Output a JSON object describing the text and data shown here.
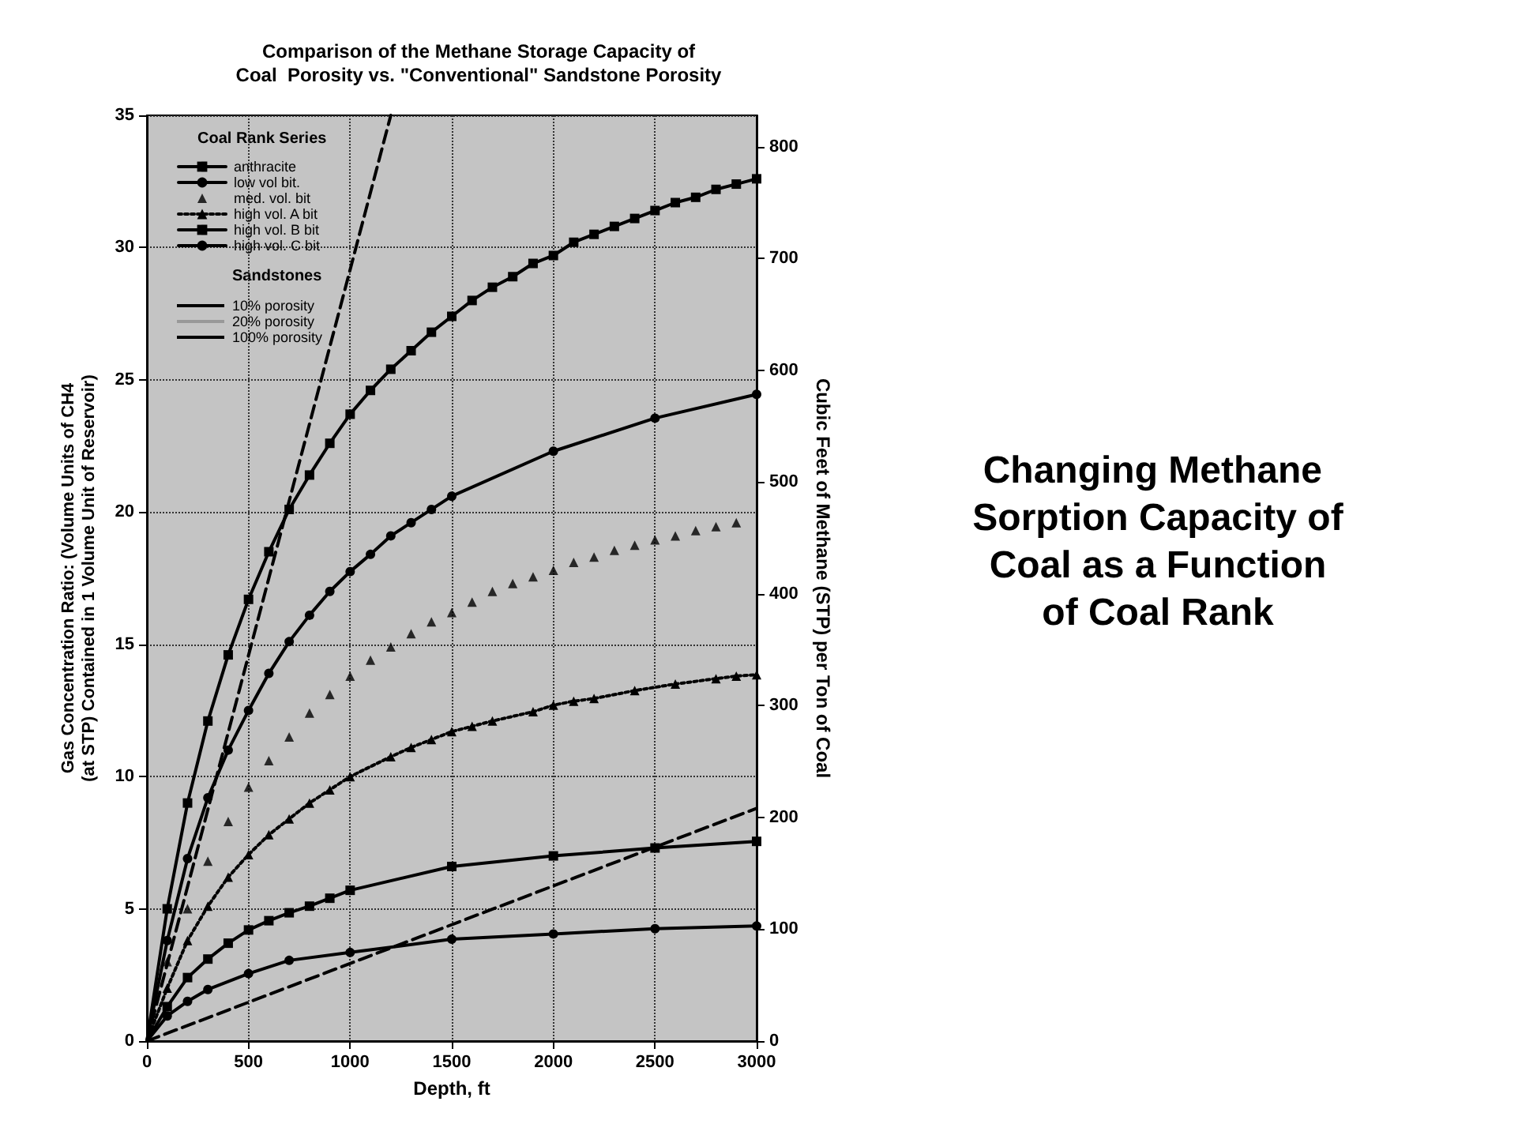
{
  "chart_data": {
    "type": "line",
    "title": "Changing Methane Sorption Capacity of Coal as a Function of Coal Rank",
    "subtitle": "Comparison of the Methane Storage Capacity of\nCoal  Porosity vs. \"Conventional\" Sandstone Porosity",
    "xlabel": "Depth, ft",
    "ylabel": "Gas Concentration Ratio: (Volume Units of CH4\n(at STP) Contained in 1 Volume Unit of Reservoir)",
    "y2label": "Cubic Feet of Methane (STP) per Ton of Coal",
    "legend_title": "Coal Rank Series",
    "annotations": [
      "Sandstones"
    ],
    "xlim": [
      0,
      3000
    ],
    "xticks": [
      0,
      500,
      1000,
      1500,
      2000,
      2500,
      3000
    ],
    "ylim": [
      0,
      35
    ],
    "yticks": [
      0,
      5,
      10,
      15,
      20,
      25,
      30,
      35
    ],
    "y2lim": [
      0,
      828
    ],
    "y2ticks": [
      0,
      100,
      200,
      300,
      400,
      500,
      600,
      700,
      800
    ],
    "grid": true,
    "legend": "top left",
    "series": [
      {
        "name": "anthracite",
        "color": "#000000",
        "marker": "square",
        "line_style": "solid",
        "x": [
          0,
          100,
          200,
          300,
          400,
          500,
          600,
          700,
          800,
          900,
          1000,
          1100,
          1200,
          1300,
          1400,
          1500,
          1600,
          1700,
          1800,
          1900,
          2000,
          2100,
          2200,
          2300,
          2400,
          2500,
          2600,
          2700,
          2800,
          2900,
          3000
        ],
        "values": [
          0,
          5.0,
          9.0,
          12.1,
          14.6,
          16.7,
          18.5,
          20.1,
          21.4,
          22.6,
          23.7,
          24.6,
          25.4,
          26.1,
          26.8,
          27.4,
          28.0,
          28.5,
          28.9,
          29.4,
          29.7,
          30.2,
          30.5,
          30.8,
          31.1,
          31.4,
          31.7,
          31.9,
          32.2,
          32.4,
          32.6
        ]
      },
      {
        "name": "low vol bit.",
        "color": "#000000",
        "marker": "circle",
        "line_style": "solid",
        "x": [
          0,
          100,
          200,
          300,
          400,
          500,
          600,
          700,
          800,
          900,
          1000,
          1100,
          1200,
          1300,
          1400,
          1500,
          2000,
          2500,
          3000
        ],
        "values": [
          0,
          3.8,
          6.9,
          9.2,
          11.0,
          12.5,
          13.9,
          15.1,
          16.1,
          17.0,
          17.75,
          18.4,
          19.1,
          19.6,
          20.1,
          20.6,
          22.3,
          23.55,
          24.45
        ]
      },
      {
        "name": "med. vol. bit",
        "type": "scatter",
        "color": "#000000",
        "marker": "triangle",
        "x": [
          100,
          200,
          300,
          400,
          500,
          600,
          700,
          800,
          900,
          1000,
          1100,
          1200,
          1300,
          1400,
          1500,
          1600,
          1700,
          1800,
          1900,
          2000,
          2100,
          2200,
          2300,
          2400,
          2500,
          2600,
          2700,
          2800,
          2900
        ],
        "values": [
          3.0,
          5.0,
          6.8,
          8.3,
          9.6,
          10.6,
          11.5,
          12.4,
          13.1,
          13.8,
          14.4,
          14.9,
          15.4,
          15.85,
          16.2,
          16.6,
          17.0,
          17.3,
          17.55,
          17.8,
          18.1,
          18.3,
          18.55,
          18.75,
          18.95,
          19.1,
          19.3,
          19.45,
          19.6
        ]
      },
      {
        "name": "high vol. A bit",
        "color": "#000000",
        "marker": "triangle",
        "line_style": "dotted",
        "x": [
          0,
          100,
          200,
          300,
          400,
          500,
          600,
          700,
          800,
          900,
          1000,
          1200,
          1300,
          1400,
          1500,
          1600,
          1700,
          1900,
          2000,
          2100,
          2200,
          2400,
          2600,
          2800,
          2900,
          3000
        ],
        "values": [
          0,
          2.0,
          3.8,
          5.1,
          6.2,
          7.05,
          7.8,
          8.4,
          9.0,
          9.5,
          10.0,
          10.75,
          11.1,
          11.4,
          11.7,
          11.9,
          12.1,
          12.45,
          12.7,
          12.85,
          12.95,
          13.25,
          13.5,
          13.7,
          13.8,
          13.85
        ]
      },
      {
        "name": "high vol. B bit",
        "color": "#000000",
        "marker": "square",
        "line_style": "solid",
        "x": [
          0,
          100,
          200,
          300,
          400,
          500,
          600,
          700,
          800,
          900,
          1000,
          1500,
          2000,
          2500,
          3000
        ],
        "values": [
          0,
          1.3,
          2.4,
          3.1,
          3.7,
          4.2,
          4.55,
          4.85,
          5.1,
          5.4,
          5.7,
          6.6,
          7.0,
          7.3,
          7.55
        ]
      },
      {
        "name": "high vol. C bit",
        "color": "#000000",
        "marker": "circle",
        "line_style": "solid",
        "x": [
          0,
          100,
          200,
          300,
          500,
          700,
          1000,
          1500,
          2000,
          2500,
          3000
        ],
        "values": [
          0,
          0.95,
          1.5,
          1.95,
          2.55,
          3.05,
          3.35,
          3.85,
          4.05,
          4.25,
          4.35
        ]
      },
      {
        "name": "10% porosity",
        "color": "#000000",
        "marker": "none",
        "line_style": "dashed",
        "x": [
          0,
          3000
        ],
        "values": [
          0,
          8.8
        ]
      },
      {
        "name": "20% porosity",
        "color": "#999999",
        "marker": "none",
        "line_style": "dotted"
      },
      {
        "name": "100% porosity",
        "color": "#000000",
        "marker": "none",
        "line_style": "dashed",
        "x": [
          0,
          1200
        ],
        "values": [
          0,
          35
        ]
      }
    ]
  }
}
